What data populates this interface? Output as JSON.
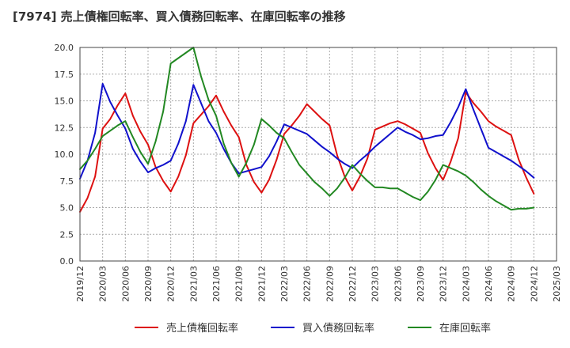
{
  "chart_data": {
    "type": "line",
    "title": "[7974]  売上債権回転率、買入債務回転率、在庫回転率の推移",
    "xlabel": "",
    "ylabel": "",
    "ylim": [
      0,
      20
    ],
    "yticks": [
      "0.0",
      "2.5",
      "5.0",
      "7.5",
      "10.0",
      "12.5",
      "15.0",
      "17.5",
      "20.0"
    ],
    "ytick_values": [
      0,
      2.5,
      5,
      7.5,
      10,
      12.5,
      15,
      17.5,
      20
    ],
    "x": [
      "2019/12",
      "2020/01",
      "2020/02",
      "2020/03",
      "2020/04",
      "2020/05",
      "2020/06",
      "2020/07",
      "2020/08",
      "2020/09",
      "2020/10",
      "2020/11",
      "2020/12",
      "2021/01",
      "2021/02",
      "2021/03",
      "2021/04",
      "2021/05",
      "2021/06",
      "2021/07",
      "2021/08",
      "2021/09",
      "2021/10",
      "2021/11",
      "2021/12",
      "2022/01",
      "2022/02",
      "2022/03",
      "2022/04",
      "2022/05",
      "2022/06",
      "2022/07",
      "2022/08",
      "2022/09",
      "2022/10",
      "2022/11",
      "2022/12",
      "2023/01",
      "2023/02",
      "2023/03",
      "2023/04",
      "2023/05",
      "2023/06",
      "2023/07",
      "2023/08",
      "2023/09",
      "2023/10",
      "2023/11",
      "2023/12",
      "2024/01",
      "2024/02",
      "2024/03",
      "2024/04",
      "2024/05",
      "2024/06",
      "2024/07",
      "2024/08",
      "2024/09",
      "2024/10",
      "2024/11",
      "2024/12",
      "2025/01",
      "2025/02",
      "2025/03"
    ],
    "xticks": [
      "2019/12",
      "2020/03",
      "2020/06",
      "2020/09",
      "2020/12",
      "2021/03",
      "2021/06",
      "2021/09",
      "2021/12",
      "2022/03",
      "2022/06",
      "2022/09",
      "2022/12",
      "2023/03",
      "2023/06",
      "2023/09",
      "2023/12",
      "2024/03",
      "2024/06",
      "2024/09",
      "2024/12",
      "2025/03"
    ],
    "grid": true,
    "legend_position": "bottom",
    "series": [
      {
        "name": "売上債権回転率",
        "color": "#dd1111",
        "values": [
          4.6,
          5.9,
          7.9,
          12.4,
          13.3,
          14.6,
          15.7,
          13.6,
          12.1,
          10.9,
          8.8,
          7.5,
          6.5,
          7.9,
          9.9,
          12.9,
          13.7,
          14.5,
          15.5,
          14.0,
          12.7,
          11.6,
          9.0,
          7.4,
          6.4,
          7.6,
          9.5,
          11.9,
          12.7,
          13.6,
          14.7,
          14.0,
          13.3,
          12.7,
          9.9,
          7.9,
          6.6,
          7.9,
          9.6,
          12.3,
          12.6,
          12.9,
          13.1,
          12.8,
          12.4,
          12.0,
          10.1,
          8.7,
          7.6,
          9.3,
          11.5,
          15.8,
          14.8,
          14.0,
          13.1,
          12.6,
          12.2,
          11.8,
          9.5,
          7.8,
          6.3,
          null,
          null,
          null
        ]
      },
      {
        "name": "買入債務回転率",
        "color": "#1111cc",
        "values": [
          7.7,
          9.4,
          12.0,
          16.6,
          14.9,
          13.6,
          12.4,
          10.5,
          9.3,
          8.3,
          8.7,
          9.0,
          9.4,
          11.0,
          13.1,
          16.5,
          14.8,
          13.1,
          12.0,
          10.5,
          9.2,
          8.2,
          8.4,
          8.6,
          8.8,
          9.8,
          11.2,
          12.8,
          12.5,
          12.2,
          11.9,
          11.3,
          10.7,
          10.2,
          9.6,
          9.1,
          8.7,
          9.4,
          10.0,
          10.7,
          11.3,
          11.9,
          12.5,
          12.1,
          11.8,
          11.4,
          11.5,
          11.7,
          11.8,
          13.0,
          14.4,
          16.1,
          14.2,
          12.4,
          10.6,
          10.2,
          9.8,
          9.4,
          8.9,
          8.4,
          7.8,
          null,
          null,
          null
        ]
      },
      {
        "name": "在庫回転率",
        "color": "#228822",
        "values": [
          8.6,
          9.4,
          10.5,
          11.7,
          12.2,
          12.7,
          13.1,
          11.6,
          10.2,
          9.1,
          11.2,
          14.0,
          18.5,
          19.0,
          19.5,
          20.0,
          17.3,
          15.1,
          13.6,
          11.0,
          9.2,
          7.9,
          9.2,
          10.9,
          13.3,
          12.7,
          12.0,
          11.5,
          10.2,
          9.0,
          8.2,
          7.4,
          6.8,
          6.1,
          6.8,
          7.8,
          9.0,
          8.2,
          7.5,
          6.9,
          6.9,
          6.8,
          6.8,
          6.4,
          6.0,
          5.7,
          6.5,
          7.6,
          9.0,
          8.7,
          8.4,
          8.0,
          7.4,
          6.7,
          6.1,
          5.6,
          5.2,
          4.8,
          4.9,
          4.9,
          5.0,
          null,
          null,
          null
        ]
      }
    ]
  }
}
